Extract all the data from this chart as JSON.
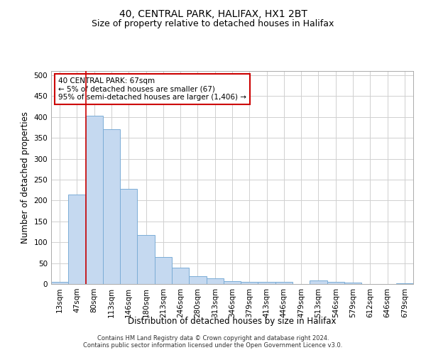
{
  "title": "40, CENTRAL PARK, HALIFAX, HX1 2BT",
  "subtitle": "Size of property relative to detached houses in Halifax",
  "xlabel": "Distribution of detached houses by size in Halifax",
  "ylabel": "Number of detached properties",
  "footnote1": "Contains HM Land Registry data © Crown copyright and database right 2024.",
  "footnote2": "Contains public sector information licensed under the Open Government Licence v3.0.",
  "categories": [
    "13sqm",
    "47sqm",
    "80sqm",
    "113sqm",
    "146sqm",
    "180sqm",
    "213sqm",
    "246sqm",
    "280sqm",
    "313sqm",
    "346sqm",
    "379sqm",
    "413sqm",
    "446sqm",
    "479sqm",
    "513sqm",
    "546sqm",
    "579sqm",
    "612sqm",
    "646sqm",
    "679sqm"
  ],
  "values": [
    5,
    215,
    403,
    370,
    228,
    118,
    65,
    39,
    18,
    13,
    7,
    5,
    5,
    5,
    0,
    8,
    5,
    3,
    0,
    0,
    2
  ],
  "bar_color": "#c5d9f0",
  "bar_edge_color": "#7badd6",
  "vline_x": 1.5,
  "vline_color": "#cc0000",
  "annotation_text": "40 CENTRAL PARK: 67sqm\n← 5% of detached houses are smaller (67)\n95% of semi-detached houses are larger (1,406) →",
  "annotation_box_color": "#ffffff",
  "annotation_box_edge": "#cc0000",
  "ylim": [
    0,
    510
  ],
  "yticks": [
    0,
    50,
    100,
    150,
    200,
    250,
    300,
    350,
    400,
    450,
    500
  ],
  "grid_color": "#d0d0d0",
  "background_color": "#ffffff",
  "title_fontsize": 10,
  "subtitle_fontsize": 9,
  "axis_label_fontsize": 8.5,
  "tick_fontsize": 7.5,
  "annotation_fontsize": 7.5,
  "footnote_fontsize": 6
}
